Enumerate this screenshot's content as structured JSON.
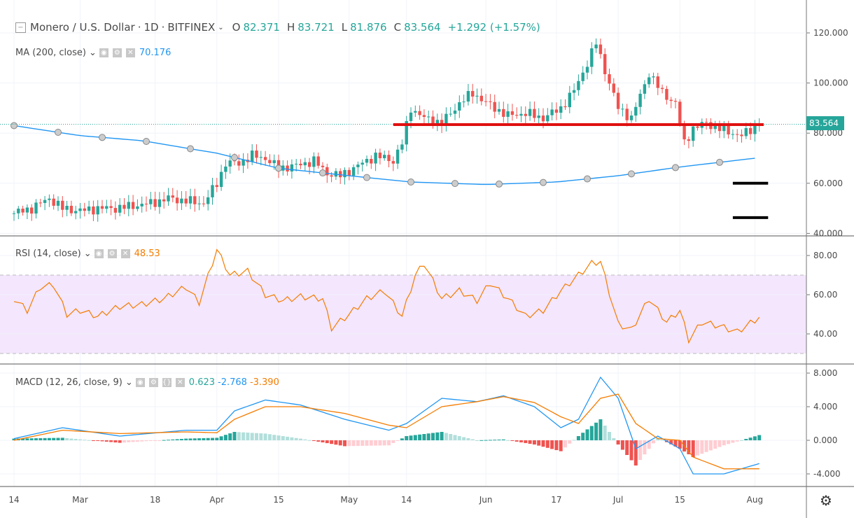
{
  "header": {
    "symbol": "Monero / U.S. Dollar",
    "interval": "1D",
    "exchange": "BITFINEX",
    "open": "82.371",
    "high": "83.721",
    "low": "81.876",
    "close": "83.564",
    "change": "+1.292 (+1.57%)"
  },
  "ma": {
    "label": "MA (200, close)",
    "value": "70.176"
  },
  "rsi": {
    "label": "RSI (14, close)",
    "value": "48.53"
  },
  "macd": {
    "label": "MACD (12, 26, close, 9)",
    "hist": "0.623",
    "macd": "-2.768",
    "signal": "-3.390"
  },
  "last_price_badge": "83.564",
  "colors": {
    "up": "#26a69a",
    "down": "#ef5350",
    "ma": "#2196f3",
    "rsi": "#f57c00",
    "signal": "#f57c00",
    "hline": "#e01010",
    "rsi_band": "#f3e6fd"
  },
  "chart_data": [
    {
      "type": "candlestick",
      "title": "Monero / U.S. Dollar · 1D · BITFINEX",
      "ylim": [
        40,
        125
      ],
      "y_ticks": [
        "120.000",
        "100.000",
        "80.000",
        "60.000",
        "40.000"
      ],
      "x_ticks": [
        "14",
        "Mar",
        "18",
        "Apr",
        "15",
        "May",
        "14",
        "Jun",
        "17",
        "Jul",
        "15",
        "Aug"
      ],
      "closes": [
        [
          "2019-02-14",
          48
        ],
        [
          "2019-02-18",
          50
        ],
        [
          "2019-02-22",
          54
        ],
        [
          "2019-02-25",
          50
        ],
        [
          "2019-03-01",
          49
        ],
        [
          "2019-03-05",
          50
        ],
        [
          "2019-03-09",
          50
        ],
        [
          "2019-03-13",
          51
        ],
        [
          "2019-03-17",
          52
        ],
        [
          "2019-03-21",
          54
        ],
        [
          "2019-03-25",
          53
        ],
        [
          "2019-03-29",
          52
        ],
        [
          "2019-04-01",
          60
        ],
        [
          "2019-04-03",
          68
        ],
        [
          "2019-04-06",
          68
        ],
        [
          "2019-04-09",
          71
        ],
        [
          "2019-04-12",
          70
        ],
        [
          "2019-04-15",
          66
        ],
        [
          "2019-04-19",
          67
        ],
        [
          "2019-04-23",
          69
        ],
        [
          "2019-04-26",
          64
        ],
        [
          "2019-04-29",
          63
        ],
        [
          "2019-05-03",
          67
        ],
        [
          "2019-05-07",
          71
        ],
        [
          "2019-05-11",
          69
        ],
        [
          "2019-05-13",
          76
        ],
        [
          "2019-05-15",
          90
        ],
        [
          "2019-05-18",
          86
        ],
        [
          "2019-05-22",
          84
        ],
        [
          "2019-05-26",
          92
        ],
        [
          "2019-05-29",
          96
        ],
        [
          "2019-06-02",
          91
        ],
        [
          "2019-06-06",
          87
        ],
        [
          "2019-06-10",
          88
        ],
        [
          "2019-06-14",
          86
        ],
        [
          "2019-06-18",
          90
        ],
        [
          "2019-06-21",
          97
        ],
        [
          "2019-06-24",
          108
        ],
        [
          "2019-06-26",
          116
        ],
        [
          "2019-06-28",
          105
        ],
        [
          "2019-07-01",
          90
        ],
        [
          "2019-07-04",
          86
        ],
        [
          "2019-07-08",
          104
        ],
        [
          "2019-07-11",
          96
        ],
        [
          "2019-07-14",
          92
        ],
        [
          "2019-07-16",
          76
        ],
        [
          "2019-07-18",
          82
        ],
        [
          "2019-07-21",
          84
        ],
        [
          "2019-07-25",
          81
        ],
        [
          "2019-07-29",
          79
        ],
        [
          "2019-08-02",
          83.564
        ]
      ],
      "ma200": [
        [
          "2019-02-14",
          83
        ],
        [
          "2019-03-01",
          79
        ],
        [
          "2019-03-15",
          77
        ],
        [
          "2019-04-01",
          72
        ],
        [
          "2019-04-15",
          66
        ],
        [
          "2019-05-01",
          63
        ],
        [
          "2019-05-15",
          60.5
        ],
        [
          "2019-06-01",
          59.5
        ],
        [
          "2019-06-17",
          60.5
        ],
        [
          "2019-07-01",
          63
        ],
        [
          "2019-07-15",
          66.5
        ],
        [
          "2019-08-02",
          70.2
        ]
      ],
      "horizontal_lines": [
        {
          "price": 83.4,
          "from": "2019-05-11",
          "to": "2019-08-03",
          "color": "#e01010"
        },
        {
          "price": 60,
          "from": "2019-07-27",
          "to": "2019-08-04",
          "color": "#000000"
        },
        {
          "price": 46.3,
          "from": "2019-07-27",
          "to": "2019-08-04",
          "color": "#000000"
        }
      ]
    },
    {
      "type": "line",
      "title": "RSI (14, close)",
      "ylim": [
        25,
        90
      ],
      "band": [
        30,
        70
      ],
      "y_ticks": [
        "80.00",
        "60.00",
        "40.00"
      ],
      "values": [
        [
          "2019-02-14",
          58
        ],
        [
          "2019-02-17",
          52
        ],
        [
          "2019-02-20",
          64
        ],
        [
          "2019-02-23",
          65
        ],
        [
          "2019-02-26",
          50
        ],
        [
          "2019-03-01",
          52
        ],
        [
          "2019-03-05",
          49
        ],
        [
          "2019-03-10",
          54
        ],
        [
          "2019-03-15",
          55
        ],
        [
          "2019-03-20",
          58
        ],
        [
          "2019-03-25",
          64
        ],
        [
          "2019-03-28",
          56
        ],
        [
          "2019-04-01",
          83
        ],
        [
          "2019-04-04",
          70
        ],
        [
          "2019-04-08",
          72
        ],
        [
          "2019-04-12",
          60
        ],
        [
          "2019-04-16",
          57
        ],
        [
          "2019-04-20",
          59
        ],
        [
          "2019-04-25",
          58
        ],
        [
          "2019-04-27",
          43
        ],
        [
          "2019-05-01",
          50
        ],
        [
          "2019-05-05",
          58
        ],
        [
          "2019-05-09",
          62
        ],
        [
          "2019-05-13",
          49
        ],
        [
          "2019-05-16",
          70
        ],
        [
          "2019-05-18",
          76
        ],
        [
          "2019-05-22",
          58
        ],
        [
          "2019-05-26",
          62
        ],
        [
          "2019-05-30",
          57
        ],
        [
          "2019-06-02",
          66
        ],
        [
          "2019-06-06",
          58
        ],
        [
          "2019-06-10",
          49
        ],
        [
          "2019-06-14",
          52
        ],
        [
          "2019-06-18",
          62
        ],
        [
          "2019-06-22",
          70
        ],
        [
          "2019-06-25",
          76
        ],
        [
          "2019-06-27",
          77
        ],
        [
          "2019-07-01",
          45
        ],
        [
          "2019-07-04",
          42
        ],
        [
          "2019-07-08",
          58
        ],
        [
          "2019-07-12",
          46
        ],
        [
          "2019-07-15",
          52
        ],
        [
          "2019-07-17",
          37
        ],
        [
          "2019-07-20",
          46
        ],
        [
          "2019-07-24",
          44
        ],
        [
          "2019-07-28",
          41
        ],
        [
          "2019-08-02",
          48.53
        ]
      ]
    },
    {
      "type": "line",
      "title": "MACD (12, 26, close, 9)",
      "ylim": [
        -5.5,
        8.5
      ],
      "y_ticks": [
        "8.000",
        "4.000",
        "0.000",
        "-4.000"
      ],
      "series": [
        {
          "name": "MACD",
          "values": [
            [
              "2019-02-14",
              0.2
            ],
            [
              "2019-02-25",
              1.5
            ],
            [
              "2019-03-10",
              0.5
            ],
            [
              "2019-03-25",
              1.2
            ],
            [
              "2019-04-01",
              1.2
            ],
            [
              "2019-04-05",
              3.5
            ],
            [
              "2019-04-12",
              4.8
            ],
            [
              "2019-04-20",
              4.2
            ],
            [
              "2019-04-30",
              2.5
            ],
            [
              "2019-05-10",
              1.2
            ],
            [
              "2019-05-14",
              2.0
            ],
            [
              "2019-05-22",
              5.0
            ],
            [
              "2019-05-30",
              4.6
            ],
            [
              "2019-06-05",
              5.3
            ],
            [
              "2019-06-12",
              4.0
            ],
            [
              "2019-06-18",
              1.5
            ],
            [
              "2019-06-22",
              2.5
            ],
            [
              "2019-06-27",
              7.5
            ],
            [
              "2019-07-01",
              5.0
            ],
            [
              "2019-07-05",
              -1.0
            ],
            [
              "2019-07-10",
              0.5
            ],
            [
              "2019-07-15",
              -1.0
            ],
            [
              "2019-07-18",
              -4.0
            ],
            [
              "2019-07-25",
              -4.0
            ],
            [
              "2019-08-02",
              -2.768
            ]
          ]
        },
        {
          "name": "Signal",
          "values": [
            [
              "2019-02-14",
              0.0
            ],
            [
              "2019-02-25",
              1.2
            ],
            [
              "2019-03-10",
              0.8
            ],
            [
              "2019-03-25",
              1.0
            ],
            [
              "2019-04-01",
              0.9
            ],
            [
              "2019-04-05",
              2.5
            ],
            [
              "2019-04-12",
              4.0
            ],
            [
              "2019-04-20",
              4.0
            ],
            [
              "2019-04-30",
              3.2
            ],
            [
              "2019-05-10",
              1.8
            ],
            [
              "2019-05-14",
              1.5
            ],
            [
              "2019-05-22",
              4.0
            ],
            [
              "2019-05-30",
              4.6
            ],
            [
              "2019-06-05",
              5.2
            ],
            [
              "2019-06-12",
              4.5
            ],
            [
              "2019-06-18",
              2.8
            ],
            [
              "2019-06-22",
              2.0
            ],
            [
              "2019-06-27",
              5.0
            ],
            [
              "2019-07-01",
              5.5
            ],
            [
              "2019-07-05",
              2.0
            ],
            [
              "2019-07-10",
              0.2
            ],
            [
              "2019-07-15",
              0.0
            ],
            [
              "2019-07-18",
              -2.0
            ],
            [
              "2019-07-25",
              -3.4
            ],
            [
              "2019-08-02",
              -3.39
            ]
          ]
        }
      ]
    }
  ]
}
